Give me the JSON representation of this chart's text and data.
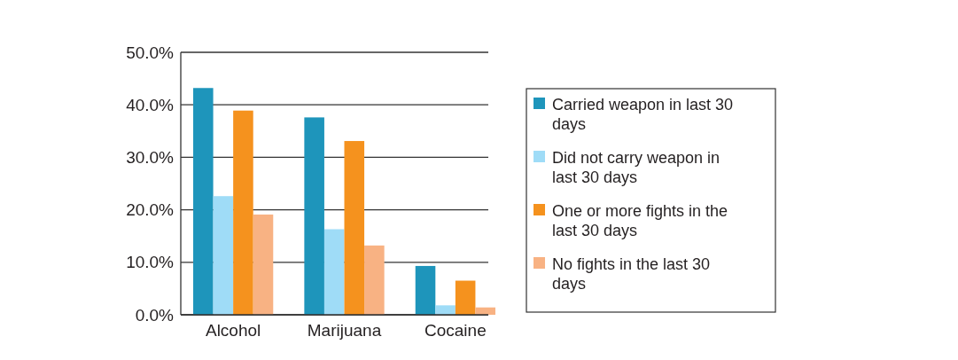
{
  "chart_data": {
    "type": "bar",
    "categories": [
      "Alcohol",
      "Marijuana",
      "Cocaine"
    ],
    "series": [
      {
        "name": "Carried weapon in last 30 days",
        "color": "#1e95bb",
        "values": [
          43.2,
          37.6,
          9.3
        ]
      },
      {
        "name": "Did not carry weapon in last 30 days",
        "color": "#9fdcf7",
        "values": [
          22.6,
          16.3,
          1.8
        ]
      },
      {
        "name": "One or more fights in the last 30 days",
        "color": "#f5921e",
        "values": [
          38.9,
          33.1,
          6.5
        ]
      },
      {
        "name": "No fights in the last 30 days",
        "color": "#f8b283",
        "values": [
          19.1,
          13.2,
          1.4
        ]
      }
    ],
    "ylim": [
      0,
      50
    ],
    "yticks": [
      {
        "value": 0,
        "label": "0.0%"
      },
      {
        "value": 10,
        "label": "10.0%"
      },
      {
        "value": 20,
        "label": "20.0%"
      },
      {
        "value": 30,
        "label": "30.0%"
      },
      {
        "value": 40,
        "label": "40.0%"
      },
      {
        "value": 50,
        "label": "50.0%"
      }
    ],
    "grid": "y",
    "legend": "right"
  }
}
